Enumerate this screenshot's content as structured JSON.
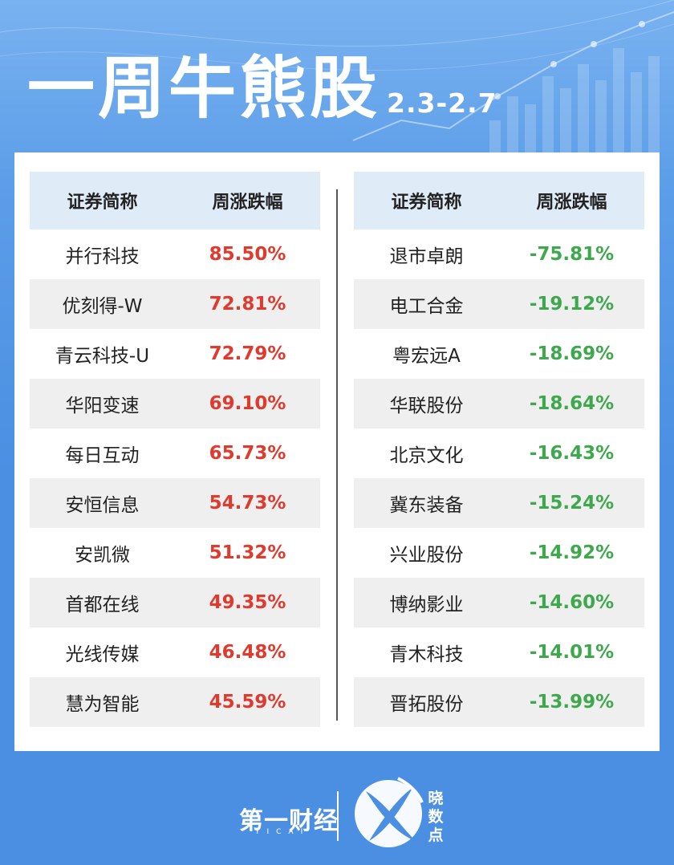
{
  "header": {
    "title": "一周牛熊股",
    "date_range": "2.3-2.7"
  },
  "colors": {
    "background": "#4a8fe2",
    "header_row": "#e0ebf8",
    "up": "#e03a2f",
    "down": "#3da94c"
  },
  "gainers": {
    "col_name": "证券简称",
    "col_change": "周涨跌幅",
    "rows": [
      {
        "name": "并行科技",
        "change": "85.50%"
      },
      {
        "name": "优刻得-W",
        "change": "72.81%"
      },
      {
        "name": "青云科技-U",
        "change": "72.79%"
      },
      {
        "name": "华阳变速",
        "change": "69.10%"
      },
      {
        "name": "每日互动",
        "change": "65.73%"
      },
      {
        "name": "安恒信息",
        "change": "54.73%"
      },
      {
        "name": "安凯微",
        "change": "51.32%"
      },
      {
        "name": "首都在线",
        "change": "49.35%"
      },
      {
        "name": "光线传媒",
        "change": "46.48%"
      },
      {
        "name": "慧为智能",
        "change": "45.59%"
      }
    ]
  },
  "losers": {
    "col_name": "证券简称",
    "col_change": "周涨跌幅",
    "rows": [
      {
        "name": "退市卓朗",
        "change": "-75.81%"
      },
      {
        "name": "电工合金",
        "change": "-19.12%"
      },
      {
        "name": "粤宏远A",
        "change": "-18.69%"
      },
      {
        "name": "华联股份",
        "change": "-18.64%"
      },
      {
        "name": "北京文化",
        "change": "-16.43%"
      },
      {
        "name": "冀东装备",
        "change": "-15.24%"
      },
      {
        "name": "兴业股份",
        "change": "-14.92%"
      },
      {
        "name": "博纳影业",
        "change": "-14.60%"
      },
      {
        "name": "青木科技",
        "change": "-14.01%"
      },
      {
        "name": "晋拓股份",
        "change": "-13.99%"
      }
    ]
  },
  "footer": {
    "brand_cn": "第一财经",
    "brand_en": "YICAI",
    "sub_brand": "晓数点"
  }
}
